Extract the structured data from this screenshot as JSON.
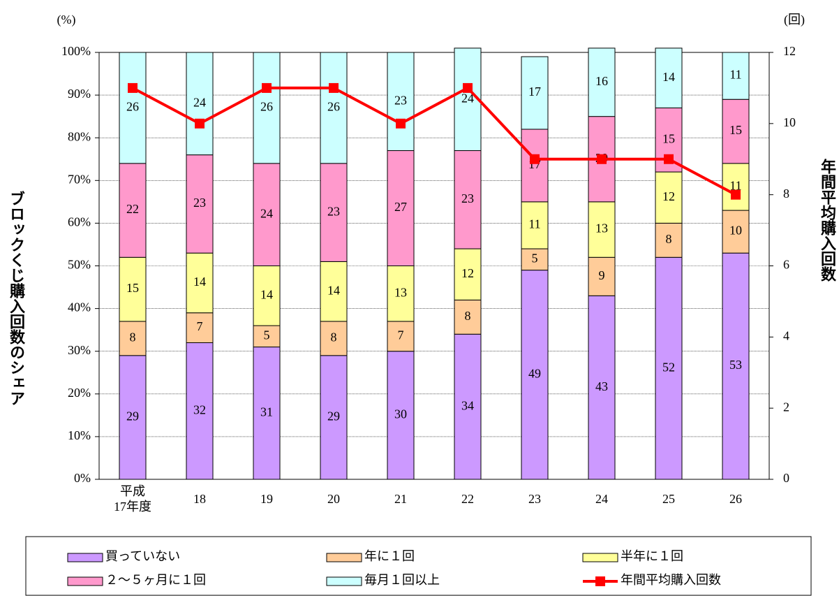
{
  "chart_data": {
    "type": "stacked_bar_line",
    "ylabel": "ブロックくじ購入回数のシェア",
    "y2label": "年間平均購入回数",
    "yunit": "(%)",
    "y2unit": "(回)",
    "categories": [
      "平成\n17年度",
      "18",
      "19",
      "20",
      "21",
      "22",
      "23",
      "24",
      "25",
      "26"
    ],
    "series": [
      {
        "name": "買っていない",
        "color": "#cc99ff",
        "values": [
          29,
          32,
          31,
          29,
          30,
          34,
          49,
          43,
          52,
          53
        ]
      },
      {
        "name": "年に１回",
        "color": "#ffcc99",
        "values": [
          8,
          7,
          5,
          8,
          7,
          8,
          5,
          9,
          8,
          10
        ]
      },
      {
        "name": "半年に１回",
        "color": "#ffff99",
        "values": [
          15,
          14,
          14,
          14,
          13,
          12,
          11,
          13,
          12,
          11
        ]
      },
      {
        "name": "２～５ヶ月に１回",
        "color": "#ff99cc",
        "values": [
          22,
          23,
          24,
          23,
          27,
          23,
          17,
          20,
          15,
          15
        ]
      },
      {
        "name": "毎月１回以上",
        "color": "#ccffff",
        "values": [
          26,
          24,
          26,
          26,
          23,
          24,
          17,
          16,
          14,
          11
        ]
      },
      {
        "name": "年間平均購入回数",
        "color": "#ff0000",
        "axis": "y2",
        "values": [
          11,
          10,
          11,
          11,
          10,
          11,
          9,
          9,
          9,
          8
        ]
      }
    ],
    "ylim": [
      0,
      100
    ],
    "yticks": [
      {
        "value": 0,
        "label": "0%"
      },
      {
        "value": 10,
        "label": "10%"
      },
      {
        "value": 20,
        "label": "20%"
      },
      {
        "value": 30,
        "label": "30%"
      },
      {
        "value": 40,
        "label": "40%"
      },
      {
        "value": 50,
        "label": "50%"
      },
      {
        "value": 60,
        "label": "60%"
      },
      {
        "value": 70,
        "label": "70%"
      },
      {
        "value": 80,
        "label": "80%"
      },
      {
        "value": 90,
        "label": "90%"
      },
      {
        "value": 100,
        "label": "100%"
      }
    ],
    "y2lim": [
      0,
      12
    ],
    "y2ticks": [
      0,
      2,
      4,
      6,
      8,
      10,
      12
    ],
    "grid": true
  }
}
